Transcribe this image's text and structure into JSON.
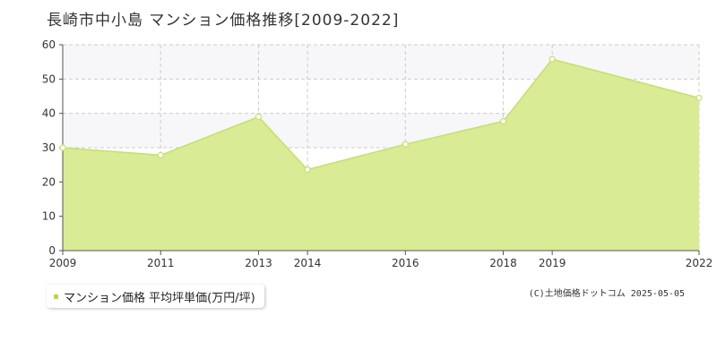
{
  "title": "長崎市中小島 マンション価格推移[2009-2022]",
  "legend": {
    "label": "マンション価格 平均坪単価(万円/坪)"
  },
  "credit": "(C)土地価格ドットコム 2025-05-05",
  "colors": {
    "fill": "#d9eb95",
    "line": "#c5e06b",
    "point_fill": "#ffffff",
    "grid": "#cccccc",
    "band": "#f7f7f9"
  },
  "chart_data": {
    "type": "area",
    "x": [
      2009,
      2011,
      2013,
      2014,
      2016,
      2018,
      2019,
      2022
    ],
    "x_ticks": [
      "2009",
      "2011",
      "2013",
      "2014",
      "2016",
      "2018",
      "2019",
      "2022"
    ],
    "series": [
      {
        "name": "マンション価格 平均坪単価(万円/坪)",
        "values": [
          30,
          27.8,
          39,
          23.6,
          31,
          37.7,
          55.8,
          44.5
        ]
      }
    ],
    "y_ticks": [
      "0",
      "10",
      "20",
      "30",
      "40",
      "50",
      "60"
    ],
    "ylim": [
      0,
      60
    ],
    "grid": true,
    "legend_position": "bottom-left"
  }
}
